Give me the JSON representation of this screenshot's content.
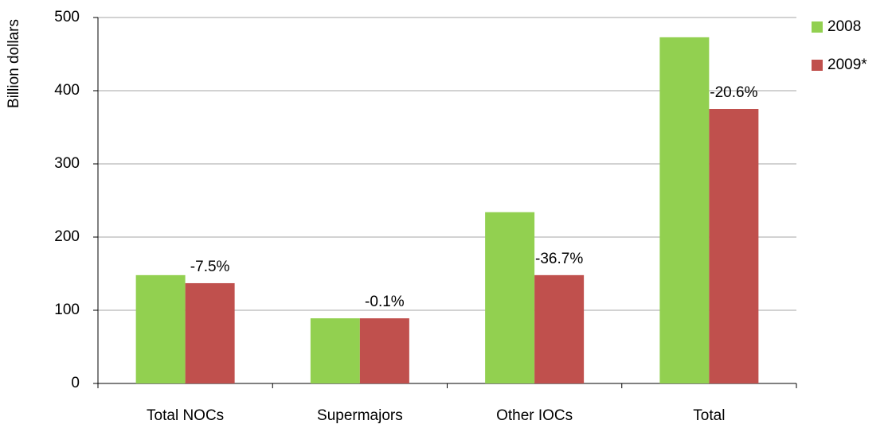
{
  "chart_data": {
    "type": "bar",
    "y_label": "Billion dollars",
    "categories": [
      "Total NOCs",
      "Supermajors",
      "Other IOCs",
      "Total"
    ],
    "series": [
      {
        "name": "2008",
        "color": "#92d050",
        "values": [
          148,
          89,
          234,
          473
        ]
      },
      {
        "name": "2009*",
        "color": "#c0504d",
        "values": [
          137,
          89,
          148,
          375
        ]
      }
    ],
    "annotations": [
      "-7.5%",
      "-0.1%",
      "-36.7%",
      "-20.6%"
    ],
    "ylim": [
      0,
      500
    ],
    "yticks": [
      0,
      100,
      200,
      300,
      400,
      500
    ],
    "grid": true,
    "legend": "right"
  }
}
